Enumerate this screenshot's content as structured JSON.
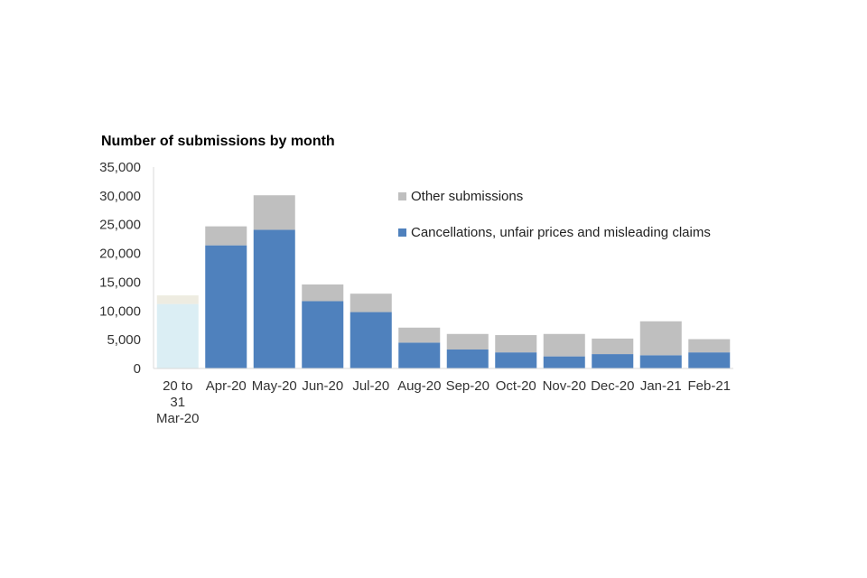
{
  "chart_data": {
    "type": "bar",
    "stacked": true,
    "title": "Number of submissions by month",
    "xlabel": "",
    "ylabel": "",
    "ylim": [
      0,
      35000
    ],
    "yticks": [
      "0",
      "5,000",
      "10,000",
      "15,000",
      "20,000",
      "25,000",
      "30,000",
      "35,000"
    ],
    "grid": false,
    "legend_position": "top-right",
    "categories": [
      [
        "20 to",
        "31",
        "Mar-20"
      ],
      [
        "Apr-20"
      ],
      [
        "May-20"
      ],
      [
        "Jun-20"
      ],
      [
        "Jul-20"
      ],
      [
        "Aug-20"
      ],
      [
        "Sep-20"
      ],
      [
        "Oct-20"
      ],
      [
        "Nov-20"
      ],
      [
        "Dec-20"
      ],
      [
        "Jan-21"
      ],
      [
        "Feb-21"
      ]
    ],
    "series": [
      {
        "name": "Cancellations, unfair prices and misleading claims",
        "color": "#4f81bd",
        "first_color": "#dbeef4",
        "values": [
          11200,
          21400,
          24100,
          11700,
          9800,
          4500,
          3300,
          2800,
          2100,
          2500,
          2300,
          2800
        ]
      },
      {
        "name": "Other submissions",
        "color": "#bfbfbf",
        "first_color": "#eeece1",
        "values": [
          1500,
          3300,
          6000,
          2900,
          3200,
          2600,
          2700,
          3000,
          3900,
          2700,
          5900,
          2300
        ]
      }
    ]
  }
}
